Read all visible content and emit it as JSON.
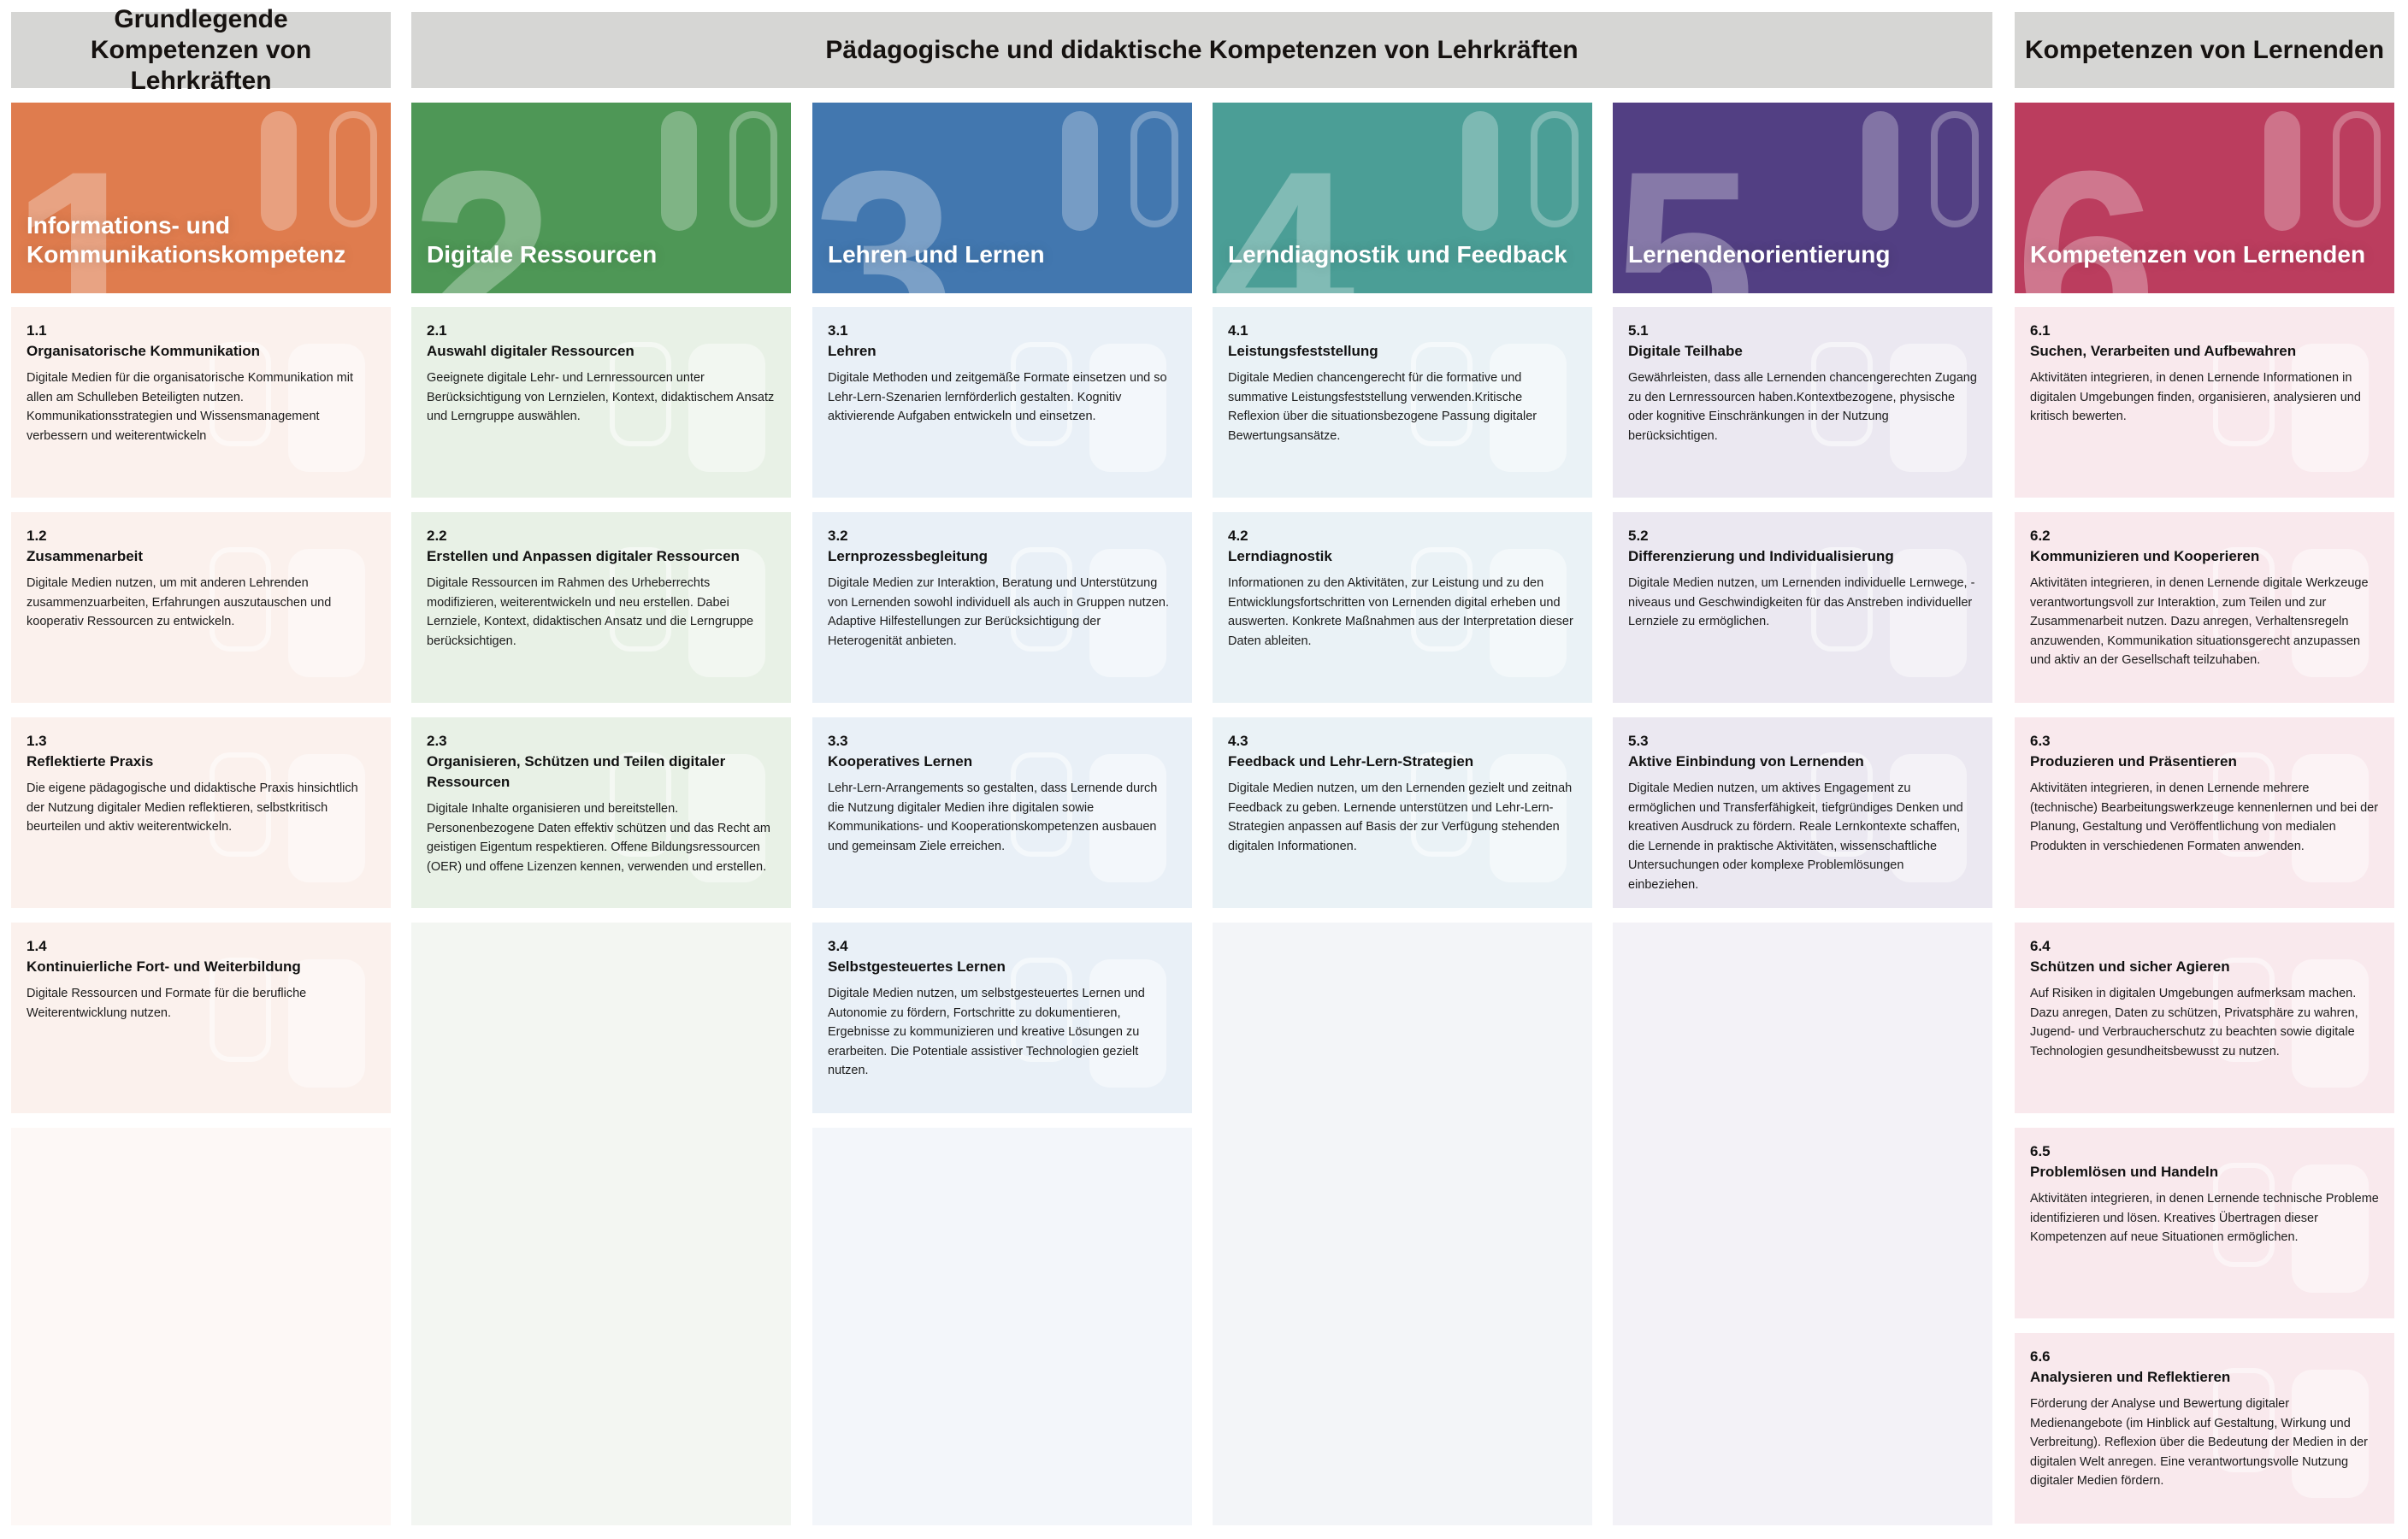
{
  "headers": {
    "group1": "Grundlegende Kompetenzen von Lehrkräften",
    "group2": "Pädagogische und didaktische Kompetenzen von Lehrkräften",
    "group3": "Kompetenzen von Lernenden"
  },
  "columns": [
    {
      "number": "1",
      "title": "Informations- und Kommunikationskompetenz",
      "color": "#df7c4e",
      "card_bg": "#fbf1ed",
      "empty_bg": "#fdf8f6",
      "cards": [
        {
          "num": "1.1",
          "title": "Organisatorische Kommunikation",
          "desc": "Digitale Medien für die organisatorische Kommunikation mit allen am Schulleben Beteiligten nutzen. Kommunikationsstrategien und Wissensmanagement verbessern und weiterentwickeln"
        },
        {
          "num": "1.2",
          "title": "Zusammenarbeit",
          "desc": "Digitale Medien nutzen, um mit anderen Lehrenden zusammenzuarbeiten, Erfahrungen auszutauschen und kooperativ Ressourcen zu entwickeln."
        },
        {
          "num": "1.3",
          "title": "Reflektierte Praxis",
          "desc": "Die eigene pädagogische und didaktische Praxis hinsichtlich der Nutzung digitaler Medien reflektieren, selbstkritisch beurteilen und aktiv weiterentwickeln."
        },
        {
          "num": "1.4",
          "title": "Kontinuierliche Fort- und Weiterbildung",
          "desc": "Digitale Ressourcen und Formate für die berufliche Weiterentwicklung nutzen."
        }
      ]
    },
    {
      "number": "2",
      "title": "Digitale Ressourcen",
      "color": "#4e9756",
      "card_bg": "#e8f1e6",
      "empty_bg": "#f3f6f2",
      "cards": [
        {
          "num": "2.1",
          "title": "Auswahl digitaler Ressourcen",
          "desc": "Geeignete digitale Lehr- und Lernressourcen unter Berücksichtigung von Lernzielen, Kontext, didaktischem Ansatz und Lerngruppe auswählen."
        },
        {
          "num": "2.2",
          "title": "Erstellen und Anpassen digitaler Ressourcen",
          "desc": "Digitale Ressourcen im Rahmen des Urheberrechts modifizieren,  weiterentwickeln und neu erstellen. Dabei Lernziele, Kontext, didaktischen Ansatz und die Lerngruppe berücksichtigen."
        },
        {
          "num": "2.3",
          "title": "Organisieren, Schützen und Teilen digitaler Ressourcen",
          "desc": "Digitale Inhalte organisieren und bereitstellen. Personenbezogene Daten effektiv schützen und das Recht am geistigen Eigentum respektieren. Offene Bildungsressourcen (OER) und offene Lizenzen kennen, verwenden und erstellen."
        }
      ]
    },
    {
      "number": "3",
      "title": "Lehren und Lernen",
      "color": "#4277af",
      "card_bg": "#e9f0f7",
      "empty_bg": "#f3f6fa",
      "cards": [
        {
          "num": "3.1",
          "title": "Lehren",
          "desc": "Digitale Methoden und zeitgemäße Formate einsetzen und so Lehr-Lern-Szenarien lernförderlich gestalten. Kognitiv aktivierende Aufgaben entwickeln und einsetzen."
        },
        {
          "num": "3.2",
          "title": "Lernprozessbegleitung",
          "desc": "Digitale Medien zur Interaktion, Beratung und Unterstützung von Lernenden sowohl  individuell als auch in Gruppen nutzen. Adaptive Hilfestellungen zur Berücksichtigung der Heterogenität anbieten."
        },
        {
          "num": "3.3",
          "title": "Kooperatives Lernen",
          "desc": "Lehr-Lern-Arrangements so gestalten, dass Lernende durch die Nutzung digitaler Medien ihre digitalen sowie Kommunikations- und Kooperationskompetenzen ausbauen und gemeinsam Ziele erreichen."
        },
        {
          "num": "3.4",
          "title": "Selbstgesteuertes Lernen",
          "desc": "Digitale Medien nutzen, um selbstgesteuertes Lernen und Autonomie zu fördern, Fortschritte zu dokumentieren, Ergebnisse zu kommunizieren und kreative Lösungen zu erarbeiten. Die Potentiale assistiver Technologien gezielt nutzen."
        }
      ]
    },
    {
      "number": "4",
      "title": "Lerndiagnostik und Feedback",
      "color": "#4b9e96",
      "card_bg": "#eaf2f6",
      "empty_bg": "#f3f5f8",
      "cards": [
        {
          "num": "4.1",
          "title": "Leistungsfeststellung",
          "desc": "Digitale Medien chancengerecht für die formative und summative Leistungsfeststellung verwenden.Kritische Reflexion über die situationsbezogene Passung digitaler Bewertungsansätze."
        },
        {
          "num": "4.2",
          "title": "Lerndiagnostik",
          "desc": "Informationen zu den Aktivitäten, zur Leistung und zu den Entwicklungsfortschritten von Lernenden digital erheben und auswerten. Konkrete Maßnahmen aus der Interpretation dieser Daten ableiten."
        },
        {
          "num": "4.3",
          "title": "Feedback und Lehr-Lern-Strategien",
          "desc": "Digitale Medien nutzen, um den Lernenden gezielt und zeitnah Feedback zu geben. Lernende unterstützen und Lehr-Lern-Strategien anpassen auf Basis der zur Verfügung stehenden digitalen Informationen."
        }
      ]
    },
    {
      "number": "5",
      "title": "Lernendenorientierung",
      "color": "#523f83",
      "card_bg": "#ebe8f1",
      "empty_bg": "#f3f2f7",
      "cards": [
        {
          "num": "5.1",
          "title": "Digitale Teilhabe",
          "desc": "Gewährleisten, dass alle Lernenden chancengerechten Zugang zu den Lernressourcen haben.Kontextbezogene, physische oder kognitive Einschränkungen in der Nutzung berücksichtigen."
        },
        {
          "num": "5.2",
          "title": "Differenzierung und Individualisierung",
          "desc": "Digitale Medien nutzen, um Lernenden individuelle Lernwege, -niveaus und Geschwindigkeiten für das Anstreben individueller Lernziele zu ermöglichen."
        },
        {
          "num": "5.3",
          "title": "Aktive Einbindung von Lernenden",
          "desc": "Digitale Medien nutzen, um aktives Engagement zu ermöglichen und Transferfähigkeit, tiefgründiges Denken und kreativen Ausdruck zu fördern. Reale Lernkontexte schaffen, die Lernende in praktische Aktivitäten, wissenschaftliche Untersuchungen oder komplexe Problemlösungen einbeziehen."
        }
      ]
    },
    {
      "number": "6",
      "title": "Kompetenzen von Lernenden",
      "color": "#bb3d5e",
      "card_bg": "#f9e9ed",
      "empty_bg": "#fcf4f6",
      "cards": [
        {
          "num": "6.1",
          "title": "Suchen, Verarbeiten und Aufbewahren",
          "desc": "Aktivitäten integrieren, in denen Lernende Informationen in digitalen Umgebungen finden, organisieren, analysieren und kritisch bewerten."
        },
        {
          "num": "6.2",
          "title": "Kommunizieren und Kooperieren",
          "desc": "Aktivitäten integrieren, in denen Lernende digitale Werkzeuge verantwortungsvoll zur Interaktion, zum Teilen und zur Zusammenarbeit nutzen. Dazu anregen, Verhaltensregeln anzuwenden, Kommunikation situationsgerecht anzupassen und aktiv an der Gesellschaft teilzuhaben."
        },
        {
          "num": "6.3",
          "title": "Produzieren und Präsentieren",
          "desc": "Aktivitäten integrieren, in denen Lernende mehrere (technische) Bearbeitungswerkzeuge kennenlernen und bei der Planung, Gestaltung und Veröffentlichung von medialen Produkten in verschiedenen Formaten anwenden."
        },
        {
          "num": "6.4",
          "title": "Schützen und sicher Agieren",
          "desc": "Auf Risiken in digitalen Umgebungen aufmerksam machen. Dazu anregen, Daten zu schützen, Privatsphäre zu wahren, Jugend- und Verbraucherschutz zu beachten sowie digitale Technologien gesundheitsbewusst zu nutzen."
        },
        {
          "num": "6.5",
          "title": "Problemlösen und Handeln",
          "desc": "Aktivitäten integrieren, in denen Lernende technische Probleme identifizieren und lösen. Kreatives Übertragen dieser Kompetenzen auf neue Situationen ermöglichen."
        },
        {
          "num": "6.6",
          "title": "Analysieren und Reflektieren",
          "desc": "Förderung der Analyse und Bewertung digitaler Medienangebote (im Hinblick auf Gestaltung, Wirkung und Verbreitung). Reflexion über die Bedeutung der Medien in der digitalen Welt anregen. Eine verantwortungsvolle Nutzung digitaler Medien fördern."
        }
      ]
    }
  ]
}
